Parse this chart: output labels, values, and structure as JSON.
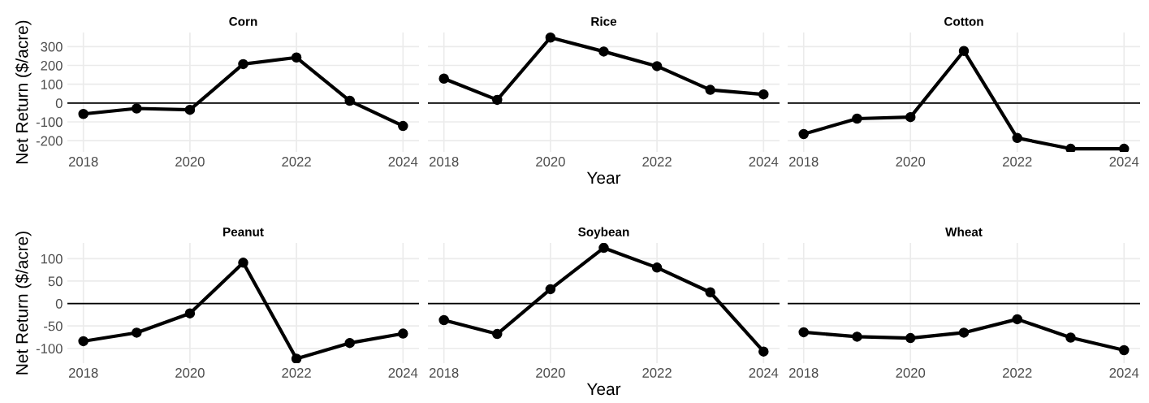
{
  "chart_data": [
    {
      "type": "line",
      "title": "Corn",
      "ylabel": "Net Return ($/acre)",
      "x": [
        2018,
        2019,
        2020,
        2021,
        2022,
        2023,
        2024
      ],
      "series": [
        {
          "color": "#000000",
          "values": [
            -58,
            -29,
            -36,
            207,
            242,
            12,
            -122
          ]
        }
      ],
      "xlim": [
        2017.7,
        2024.3
      ],
      "xticks": [
        2018,
        2020,
        2022,
        2024
      ],
      "ylim": [
        -260,
        375
      ],
      "yticks": [
        -200,
        -100,
        0,
        100,
        200,
        300
      ],
      "ref_lines": [
        {
          "axis": "y",
          "value": 0,
          "color": "#000000"
        }
      ],
      "grid": true,
      "marker": "circle",
      "line_style": "solid"
    },
    {
      "type": "line",
      "title": "Rice",
      "xlabel": "Year",
      "x": [
        2018,
        2019,
        2020,
        2021,
        2022,
        2023,
        2024
      ],
      "series": [
        {
          "color": "#000000",
          "values": [
            130,
            17,
            348,
            274,
            196,
            70,
            46
          ]
        }
      ],
      "xlim": [
        2017.7,
        2024.3
      ],
      "xticks": [
        2018,
        2020,
        2022,
        2024
      ],
      "ylim": [
        -260,
        375
      ],
      "yticks": [
        -200,
        -100,
        0,
        100,
        200,
        300
      ],
      "tick_labels": "x",
      "ref_lines": [
        {
          "axis": "y",
          "value": 0,
          "color": "#000000"
        }
      ],
      "grid": true,
      "marker": "circle",
      "line_style": "solid"
    },
    {
      "type": "line",
      "title": "Cotton",
      "x": [
        2018,
        2019,
        2020,
        2021,
        2022,
        2023,
        2024
      ],
      "series": [
        {
          "color": "#000000",
          "values": [
            -165,
            -83,
            -75,
            277,
            -186,
            -243,
            -243
          ]
        }
      ],
      "xlim": [
        2017.7,
        2024.3
      ],
      "xticks": [
        2018,
        2020,
        2022,
        2024
      ],
      "ylim": [
        -260,
        375
      ],
      "yticks": [
        -200,
        -100,
        0,
        100,
        200,
        300
      ],
      "tick_labels": "x",
      "ref_lines": [
        {
          "axis": "y",
          "value": 0,
          "color": "#000000"
        }
      ],
      "grid": true,
      "marker": "circle",
      "line_style": "solid"
    },
    {
      "type": "line",
      "title": "Peanut",
      "ylabel": "Net Return ($/acre)",
      "x": [
        2018,
        2019,
        2020,
        2021,
        2022,
        2023,
        2024
      ],
      "series": [
        {
          "color": "#000000",
          "values": [
            -84,
            -65,
            -22,
            91,
            -123,
            -88,
            -67
          ]
        }
      ],
      "xlim": [
        2017.7,
        2024.3
      ],
      "xticks": [
        2018,
        2020,
        2022,
        2024
      ],
      "ylim": [
        -133,
        135
      ],
      "yticks": [
        -100,
        -50,
        0,
        50,
        100
      ],
      "ref_lines": [
        {
          "axis": "y",
          "value": 0,
          "color": "#000000"
        }
      ],
      "grid": true,
      "marker": "circle",
      "line_style": "solid"
    },
    {
      "type": "line",
      "title": "Soybean",
      "xlabel": "Year",
      "x": [
        2018,
        2019,
        2020,
        2021,
        2022,
        2023,
        2024
      ],
      "series": [
        {
          "color": "#000000",
          "values": [
            -37,
            -68,
            32,
            124,
            80,
            25,
            -107
          ]
        }
      ],
      "xlim": [
        2017.7,
        2024.3
      ],
      "xticks": [
        2018,
        2020,
        2022,
        2024
      ],
      "ylim": [
        -133,
        135
      ],
      "yticks": [
        -100,
        -50,
        0,
        50,
        100
      ],
      "tick_labels": "x",
      "ref_lines": [
        {
          "axis": "y",
          "value": 0,
          "color": "#000000"
        }
      ],
      "grid": true,
      "marker": "circle",
      "line_style": "solid"
    },
    {
      "type": "line",
      "title": "Wheat",
      "x": [
        2018,
        2019,
        2020,
        2021,
        2022,
        2023,
        2024
      ],
      "series": [
        {
          "color": "#000000",
          "values": [
            -64,
            -74,
            -77,
            -65,
            -35,
            -76,
            -104
          ]
        }
      ],
      "xlim": [
        2017.7,
        2024.3
      ],
      "xticks": [
        2018,
        2020,
        2022,
        2024
      ],
      "ylim": [
        -133,
        135
      ],
      "yticks": [
        -100,
        -50,
        0,
        50,
        100
      ],
      "tick_labels": "x",
      "ref_lines": [
        {
          "axis": "y",
          "value": 0,
          "color": "#000000"
        }
      ],
      "grid": true,
      "marker": "circle",
      "line_style": "solid"
    }
  ]
}
